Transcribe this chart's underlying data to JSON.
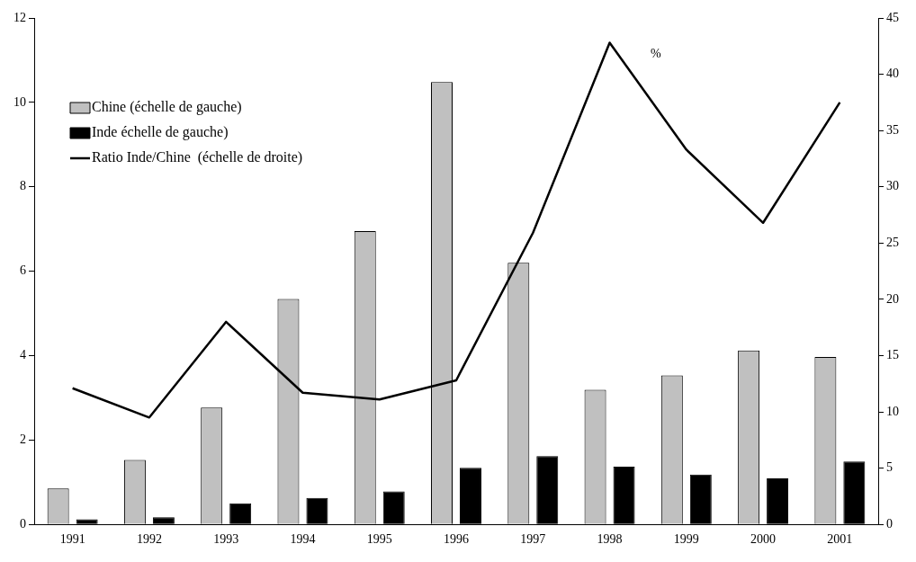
{
  "chart_data": {
    "type": "bar",
    "y2label": "%",
    "categories": [
      "1991",
      "1992",
      "1993",
      "1994",
      "1995",
      "1996",
      "1997",
      "1998",
      "1999",
      "2000",
      "2001"
    ],
    "series": [
      {
        "name": "Chine (échelle de gauche)",
        "color": "#c0c0c0",
        "values": [
          0.85,
          1.53,
          2.77,
          5.34,
          6.95,
          10.48,
          6.2,
          3.19,
          3.53,
          4.12,
          3.97
        ]
      },
      {
        "name": "Inde échelle de gauche)",
        "color": "#000000",
        "values": [
          0.12,
          0.17,
          0.5,
          0.63,
          0.78,
          1.34,
          1.62,
          1.37,
          1.18,
          1.09,
          1.49
        ]
      },
      {
        "name": "Ratio Inde/Chine  (échelle de droite)",
        "type": "line",
        "axis": "y2",
        "color": "#000000",
        "values": [
          12.1,
          9.5,
          18,
          11.7,
          11.1,
          12.8,
          25.9,
          42.8,
          33.3,
          26.8,
          37.5
        ]
      }
    ],
    "ylim": [
      0,
      12
    ],
    "yticks": [
      0,
      2,
      4,
      6,
      8,
      10,
      12
    ],
    "y2lim": [
      0,
      45
    ],
    "y2ticks": [
      0,
      5,
      10,
      15,
      20,
      25,
      30,
      35,
      40,
      45
    ],
    "grid": false,
    "legend": "top left",
    "marker": "none",
    "line_style": "solid"
  }
}
